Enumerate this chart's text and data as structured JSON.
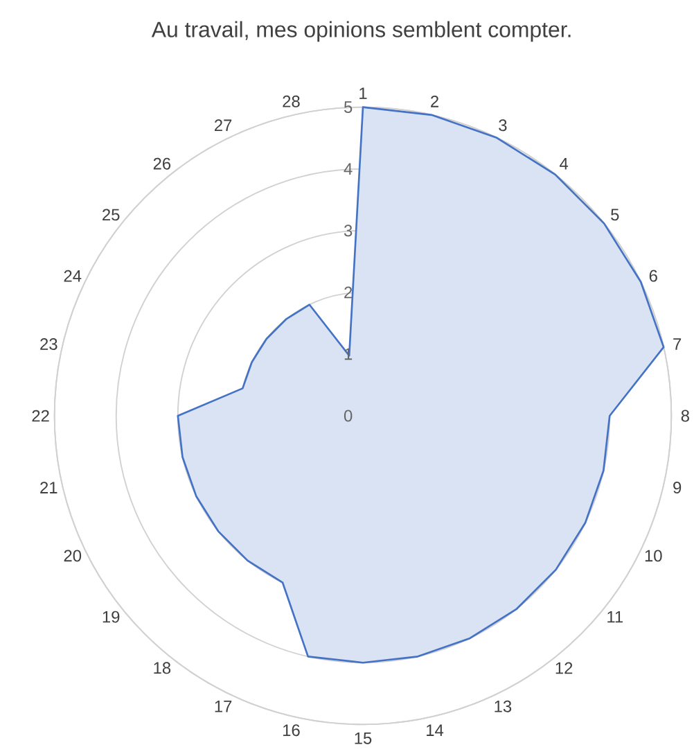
{
  "chart_data": {
    "type": "radar",
    "title": "Au travail, mes opinions semblent compter.",
    "categories": [
      "1",
      "2",
      "3",
      "4",
      "5",
      "6",
      "7",
      "8",
      "9",
      "10",
      "11",
      "12",
      "13",
      "14",
      "15",
      "16",
      "17",
      "18",
      "19",
      "20",
      "21",
      "22",
      "23",
      "24",
      "25",
      "26",
      "27",
      "28"
    ],
    "series": [
      {
        "color": "#4472c4",
        "values": [
          5,
          5,
          5,
          5,
          5,
          5,
          5,
          4,
          4,
          4,
          4,
          4,
          4,
          4,
          4,
          4,
          3,
          3,
          3,
          3,
          3,
          3,
          2,
          2,
          2,
          2,
          2,
          1
        ]
      }
    ],
    "ylim": [
      0,
      5
    ],
    "yticks": [
      0,
      1,
      2,
      3,
      4,
      5
    ],
    "grid": "y",
    "marker": "none",
    "line_style": "solid"
  }
}
